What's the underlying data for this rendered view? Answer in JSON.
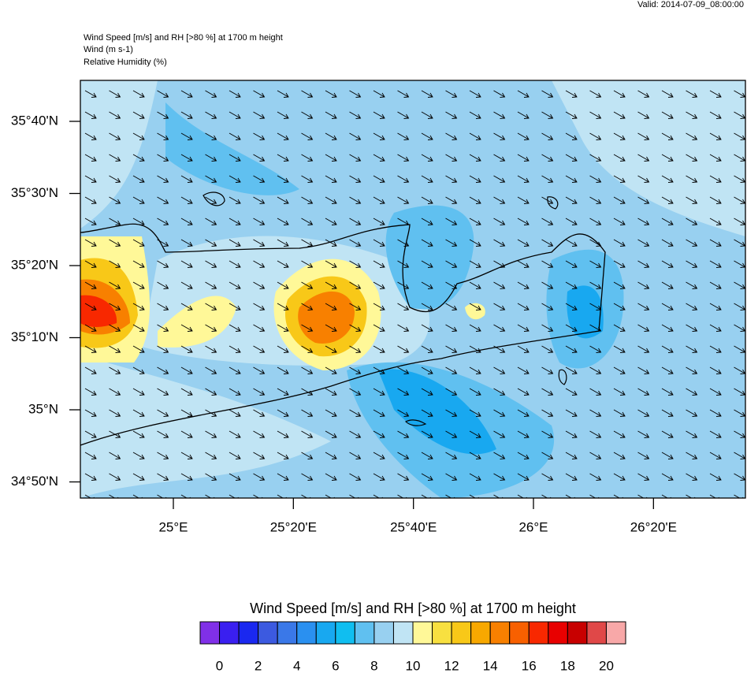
{
  "valid": "Valid: 2014-07-09_08:00:00",
  "header": [
    "Wind Speed [m/s] and RH [>80 %] at 1700 m height",
    "Wind   (m s-1)",
    "Relative Humidity   (%)"
  ],
  "lat_ticks": [
    {
      "value": 35.6667,
      "label": "35°40'N"
    },
    {
      "value": 35.5,
      "label": "35°30'N"
    },
    {
      "value": 35.3333,
      "label": "35°20'N"
    },
    {
      "value": 35.1667,
      "label": "35°10'N"
    },
    {
      "value": 35,
      "label": "35°N"
    },
    {
      "value": 34.8333,
      "label": "34°50'N"
    }
  ],
  "lon_ticks": [
    {
      "value": 25,
      "label": "25°E"
    },
    {
      "value": 25.3333,
      "label": "25°20'E"
    },
    {
      "value": 25.6667,
      "label": "25°40'E"
    },
    {
      "value": 26,
      "label": "26°E"
    },
    {
      "value": 26.3333,
      "label": "26°20'E"
    }
  ],
  "colorbar": {
    "title": "Wind Speed [m/s] and RH [>80 %] at 1700 m height",
    "colors": [
      "#8030e8",
      "#3a1ff0",
      "#1a28f0",
      "#3c5ae0",
      "#3a78e8",
      "#2a90f0",
      "#18a8f0",
      "#10bef0",
      "#60c0f0",
      "#98d0f0",
      "#c0e4f4",
      "#fff898",
      "#f8e040",
      "#f8c818",
      "#f8a800",
      "#f88000",
      "#f86000",
      "#f82800",
      "#e80000",
      "#c80000",
      "#e04848",
      "#f8a8a8"
    ],
    "ticks": [
      0,
      2,
      4,
      6,
      8,
      10,
      12,
      14,
      16,
      18,
      20
    ]
  }
}
